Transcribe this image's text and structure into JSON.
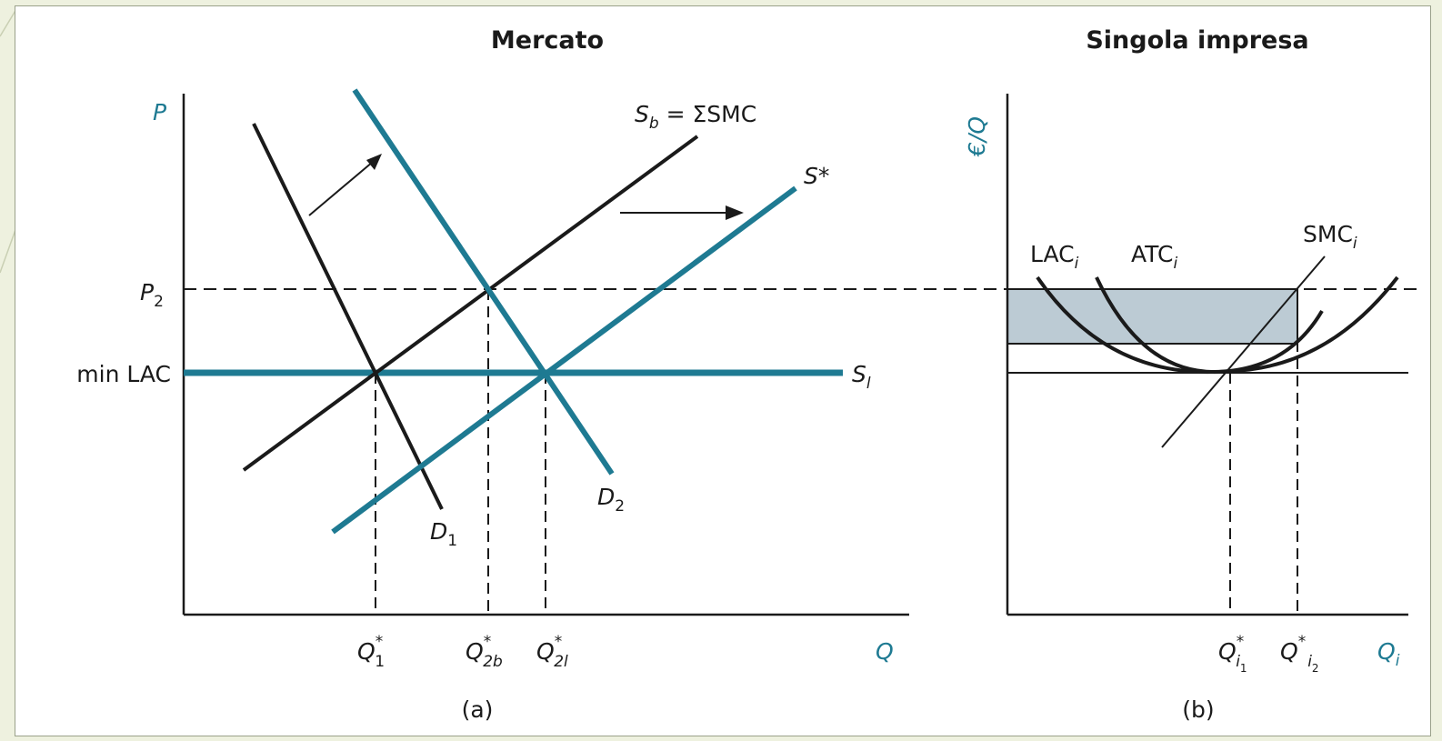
{
  "panel_a": {
    "title": "Mercato",
    "caption": "(a)",
    "y_axis": "P",
    "x_axis": "Q",
    "price_labels": {
      "p2": "P",
      "p2_sub": "2",
      "min_lac": "min LAC"
    },
    "curves": {
      "sb_main": "S",
      "sb_sub": "b",
      "sb_rest": " = ΣSMC",
      "s_star": "S*",
      "sl_main": "S",
      "sl_sub": "l",
      "d1_main": "D",
      "d1_sub": "1",
      "d2_main": "D",
      "d2_sub": "2"
    },
    "quantities": {
      "q1": "Q",
      "q1_sup": "*",
      "q1_sub": "1",
      "q2b": "Q",
      "q2b_sup": "*",
      "q2b_sub": "2b",
      "q2l": "Q",
      "q2l_sup": "*",
      "q2l_sub": "2l"
    }
  },
  "panel_b": {
    "title": "Singola impresa",
    "caption": "(b)",
    "y_axis": "€/Q",
    "x_axis_main": "Q",
    "x_axis_sub": "i",
    "curves": {
      "lac_main": "LAC",
      "lac_sub": "i",
      "atc_main": "ATC",
      "atc_sub": "i",
      "smc_main": "SMC",
      "smc_sub": "i"
    },
    "quantities": {
      "qi1": "Q",
      "qi1_sup": "*",
      "qi1_sub": "i",
      "qi1_subsub": "1",
      "qi2": "Q",
      "qi2_sup": "*",
      "qi2_sub": "i",
      "qi2_subsub": "2"
    }
  },
  "colors": {
    "teal": "#1e7a92",
    "black": "#1a1a1a",
    "shade": "#bccbd4",
    "background": "#eef1df"
  }
}
